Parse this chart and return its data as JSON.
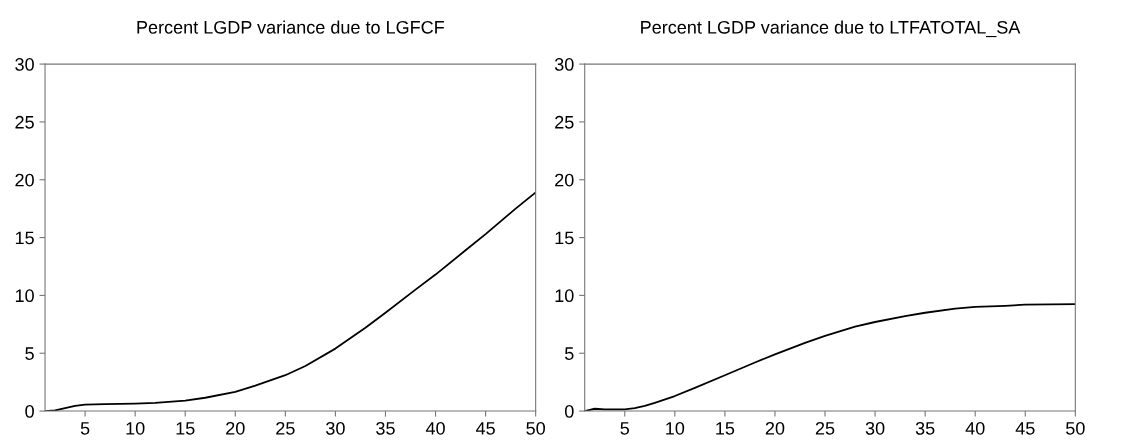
{
  "chart_data": [
    {
      "type": "line",
      "title": "Percent LGDP variance due to LGFCF",
      "xlim": [
        1,
        50
      ],
      "xticks": [
        5,
        10,
        15,
        20,
        25,
        30,
        35,
        40,
        45,
        50
      ],
      "ylim": [
        0,
        30
      ],
      "yticks": [
        0,
        5,
        10,
        15,
        20,
        25,
        30
      ],
      "grid": false,
      "legend": false,
      "series": [
        {
          "color": "#000000",
          "x": [
            1,
            2,
            3,
            4,
            5,
            7,
            10,
            12,
            15,
            17,
            20,
            22,
            25,
            27,
            30,
            33,
            35,
            38,
            40,
            43,
            45,
            48,
            50
          ],
          "values": [
            0,
            0.05,
            0.25,
            0.45,
            0.55,
            0.6,
            0.65,
            0.7,
            0.9,
            1.15,
            1.65,
            2.2,
            3.1,
            3.9,
            5.4,
            7.2,
            8.5,
            10.5,
            11.8,
            13.9,
            15.3,
            17.5,
            18.9
          ]
        }
      ]
    },
    {
      "type": "line",
      "title": "Percent LGDP variance due to LTFATOTAL_SA",
      "xlim": [
        1,
        50
      ],
      "xticks": [
        5,
        10,
        15,
        20,
        25,
        30,
        35,
        40,
        45,
        50
      ],
      "ylim": [
        0,
        30
      ],
      "yticks": [
        0,
        5,
        10,
        15,
        20,
        25,
        30
      ],
      "grid": false,
      "legend": false,
      "series": [
        {
          "color": "#000000",
          "x": [
            1,
            2,
            3,
            5,
            6,
            7,
            8,
            10,
            12,
            15,
            18,
            20,
            23,
            25,
            28,
            30,
            33,
            35,
            38,
            40,
            43,
            45,
            50
          ],
          "values": [
            0,
            0.2,
            0.15,
            0.15,
            0.25,
            0.45,
            0.7,
            1.3,
            2.0,
            3.1,
            4.2,
            4.9,
            5.9,
            6.5,
            7.3,
            7.7,
            8.2,
            8.5,
            8.85,
            9.0,
            9.1,
            9.2,
            9.25
          ]
        }
      ]
    }
  ]
}
